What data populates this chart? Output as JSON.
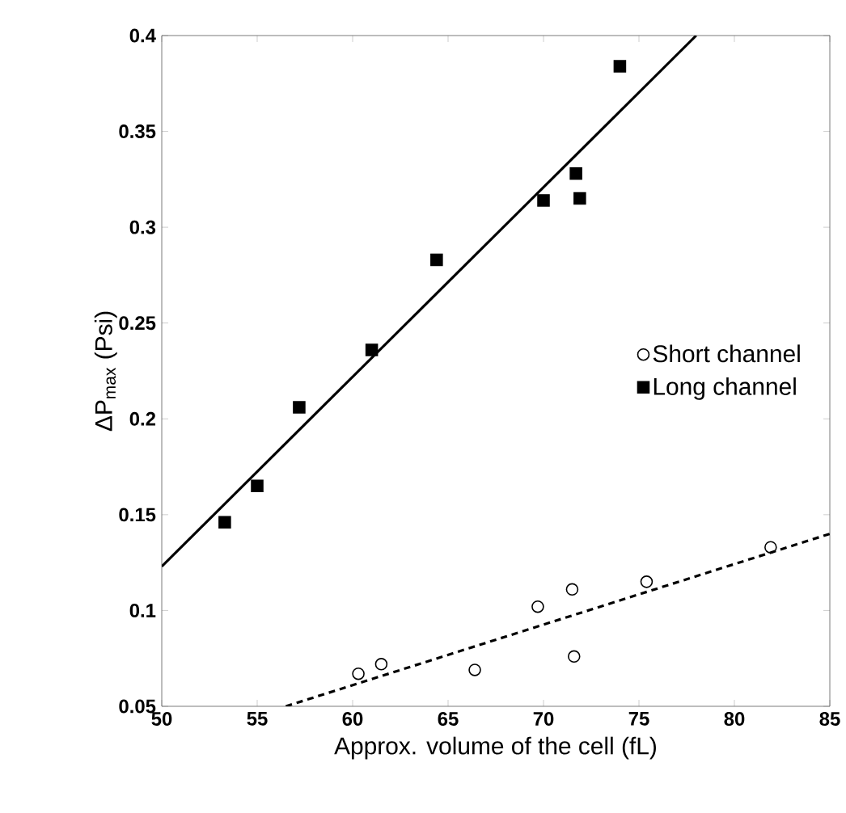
{
  "chart_data": {
    "type": "scatter",
    "xlabel": "Approx. volume of the cell (fL)",
    "ylabel": "ΔP$_{max}$ (Psi)",
    "xlim": [
      50,
      85
    ],
    "ylim": [
      0.05,
      0.4
    ],
    "xticks": [
      50,
      55,
      60,
      65,
      70,
      75,
      80,
      85
    ],
    "yticks": [
      0.05,
      0.1,
      0.15,
      0.2,
      0.25,
      0.3,
      0.35,
      0.4
    ],
    "grid": false,
    "legend": "right",
    "series": [
      {
        "name": "Short channel",
        "color": "#000000",
        "marker": "circle",
        "x": [
          60.3,
          61.5,
          66.4,
          69.7,
          71.5,
          71.6,
          75.4,
          81.9
        ],
        "values": [
          0.067,
          0.072,
          0.069,
          0.102,
          0.111,
          0.076,
          0.115,
          0.133
        ]
      },
      {
        "name": "Long channel",
        "color": "#000000",
        "marker": "square",
        "x": [
          53.3,
          55,
          57.2,
          61,
          64.4,
          70,
          71.7,
          71.9,
          74
        ],
        "values": [
          0.146,
          0.165,
          0.206,
          0.236,
          0.283,
          0.314,
          0.328,
          0.315,
          0.384
        ]
      },
      {
        "type": "line",
        "color": "#000000",
        "line_style": "dashed",
        "marker": "none",
        "x": [
          56.5,
          85
        ],
        "values": [
          0.05,
          0.14
        ]
      },
      {
        "type": "line",
        "color": "#000000",
        "line_style": "solid",
        "marker": "none",
        "x": [
          50,
          78
        ],
        "values": [
          0.123,
          0.4
        ]
      }
    ]
  }
}
